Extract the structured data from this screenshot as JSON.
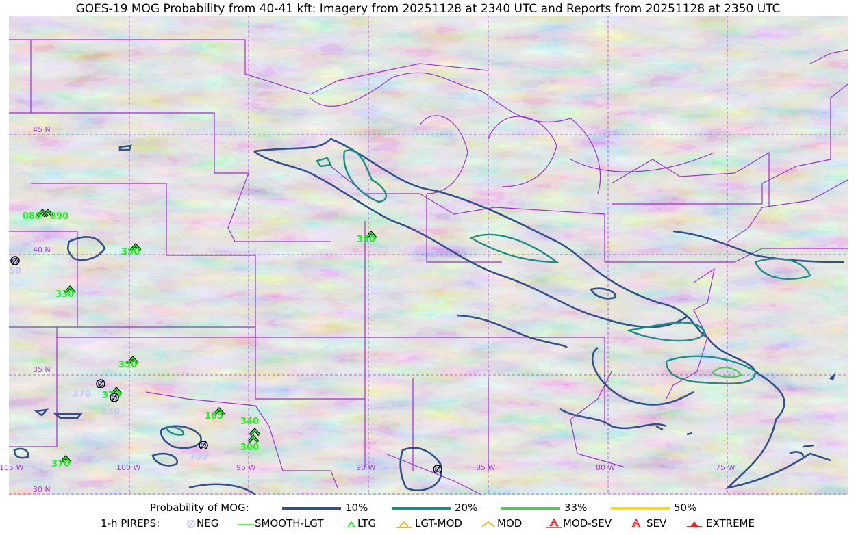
{
  "title": "GOES-19 MOG Probability from 40-41 kft: Imagery from 20251128 at 2340 UTC and Reports from 20251128 at 2350 UTC",
  "map": {
    "lat_labels": [
      "45 N",
      "40 N",
      "35 N",
      "30 N"
    ],
    "lon_labels": [
      "105 W",
      "100 W",
      "95 W",
      "90 W",
      "85 W",
      "80 W",
      "75 W"
    ],
    "colors": {
      "border": "#9933cc",
      "grid": "#a040d0",
      "p10": "#34508a",
      "p20": "#1e8c84",
      "p33": "#5cc25c",
      "p50": "#f5dc1e",
      "ltg": "#22ee22",
      "neg": "#c8c8f4"
    },
    "pireps": [
      {
        "type": "LTG",
        "label": "080"
      },
      {
        "type": "LTG",
        "label": "090"
      },
      {
        "type": "LTG",
        "label": "350"
      },
      {
        "type": "LTG",
        "label": "330"
      },
      {
        "type": "LTG",
        "label": "350"
      },
      {
        "type": "LTG",
        "label": "370"
      },
      {
        "type": "LTG",
        "label": "165"
      },
      {
        "type": "LTG",
        "label": "340"
      },
      {
        "type": "LTG",
        "label": "300"
      },
      {
        "type": "LTG",
        "label": "370"
      },
      {
        "type": "LTG",
        "label": "350"
      },
      {
        "type": "NEG",
        "label": "50"
      },
      {
        "type": "NEG",
        "label": "370"
      },
      {
        "type": "NEG",
        "label": "330"
      },
      {
        "type": "NEG",
        "label": "300"
      },
      {
        "type": "NEG",
        "label": ""
      }
    ]
  },
  "legend": {
    "mog_title": "Probability of MOG:",
    "mog_levels": [
      {
        "label": "10%",
        "color": "#34508a"
      },
      {
        "label": "20%",
        "color": "#1e8c84"
      },
      {
        "label": "33%",
        "color": "#5cc25c"
      },
      {
        "label": "50%",
        "color": "#f5dc1e"
      }
    ],
    "pirep_title": "1-h PIREPS:",
    "pirep_types": [
      {
        "label": "NEG",
        "icon": "neg-circle-slash-icon",
        "color": "#c8c8f4"
      },
      {
        "label": "SMOOTH-LGT",
        "icon": "line-icon",
        "color": "#22ee22"
      },
      {
        "label": "LTG",
        "icon": "caret-icon",
        "color": "#22ee22"
      },
      {
        "label": "LGT-MOD",
        "icon": "caret-bar-icon",
        "color": "#f5b21e"
      },
      {
        "label": "MOD",
        "icon": "caret-icon",
        "color": "#f5b21e"
      },
      {
        "label": "MOD-SEV",
        "icon": "double-caret-bar-icon",
        "color": "#ee2222"
      },
      {
        "label": "SEV",
        "icon": "double-caret-icon",
        "color": "#ee2222"
      },
      {
        "label": "EXTREME",
        "icon": "filled-triangle-icon",
        "color": "#ee2222"
      }
    ]
  }
}
